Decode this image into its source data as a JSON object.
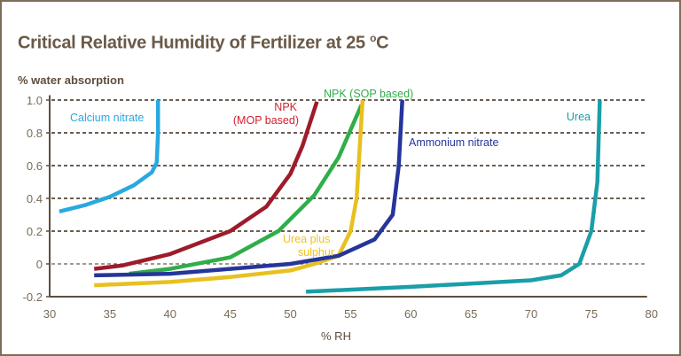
{
  "chart_data": {
    "type": "line",
    "title": "Critical Relative Humidity of Fertilizer at 25",
    "title_unit_sup": "o",
    "title_unit": "C",
    "xlabel": "% RH",
    "ylabel": "% water absorption",
    "xlim": [
      30,
      80
    ],
    "ylim": [
      -0.2,
      1.0
    ],
    "xticks": [
      "30",
      "35",
      "40",
      "45",
      "50",
      "55",
      "60",
      "65",
      "70",
      "75",
      "80"
    ],
    "yticks": [
      "-0.2",
      "0",
      "0.2",
      "0.4",
      "0.6",
      "0.8",
      "1.0"
    ],
    "grid": "horizontal dashed",
    "series": [
      {
        "name": "Calcium nitrate",
        "color": "#2aa8e0",
        "label_color": "#2aa8e0",
        "x": [
          30.8,
          33,
          35,
          37,
          38.5,
          38.9,
          39,
          39
        ],
        "y": [
          0.32,
          0.36,
          0.41,
          0.48,
          0.56,
          0.62,
          0.8,
          1.0
        ]
      },
      {
        "name": "NPK",
        "name2": "(MOP based)",
        "color": "#9e1b2a",
        "label_color": "#d4202e",
        "x": [
          33.7,
          36,
          40,
          45,
          48,
          50,
          51,
          52.2
        ],
        "y": [
          -0.03,
          -0.01,
          0.06,
          0.2,
          0.35,
          0.55,
          0.72,
          0.99
        ]
      },
      {
        "name": "NPK (SOP based)",
        "color": "#2fae49",
        "label_color": "#2fae49",
        "x": [
          36.6,
          40,
          45,
          49,
          52,
          54,
          55.9
        ],
        "y": [
          -0.06,
          -0.03,
          0.04,
          0.2,
          0.42,
          0.65,
          0.97
        ]
      },
      {
        "name": "Urea plus",
        "name2": "sulphur",
        "color": "#e8c020",
        "label_color": "#f2c31a",
        "x": [
          33.7,
          40,
          45,
          50,
          52,
          54,
          55,
          55.5,
          56
        ],
        "y": [
          -0.13,
          -0.11,
          -0.08,
          -0.04,
          0.0,
          0.05,
          0.2,
          0.4,
          1.0
        ]
      },
      {
        "name": "Ammonium nitrate",
        "color": "#25359a",
        "label_color": "#25359a",
        "x": [
          33.7,
          40,
          45,
          50,
          54,
          57,
          58.5,
          59,
          59.3
        ],
        "y": [
          -0.07,
          -0.06,
          -0.03,
          0.0,
          0.05,
          0.15,
          0.3,
          0.6,
          1.0
        ]
      },
      {
        "name": "Urea",
        "color": "#1a9ea8",
        "label_color": "#1a9ea8",
        "x": [
          51.3,
          60,
          70,
          72.5,
          74,
          75,
          75.5,
          75.7
        ],
        "y": [
          -0.17,
          -0.14,
          -0.1,
          -0.07,
          0,
          0.2,
          0.5,
          1.0
        ]
      }
    ]
  }
}
